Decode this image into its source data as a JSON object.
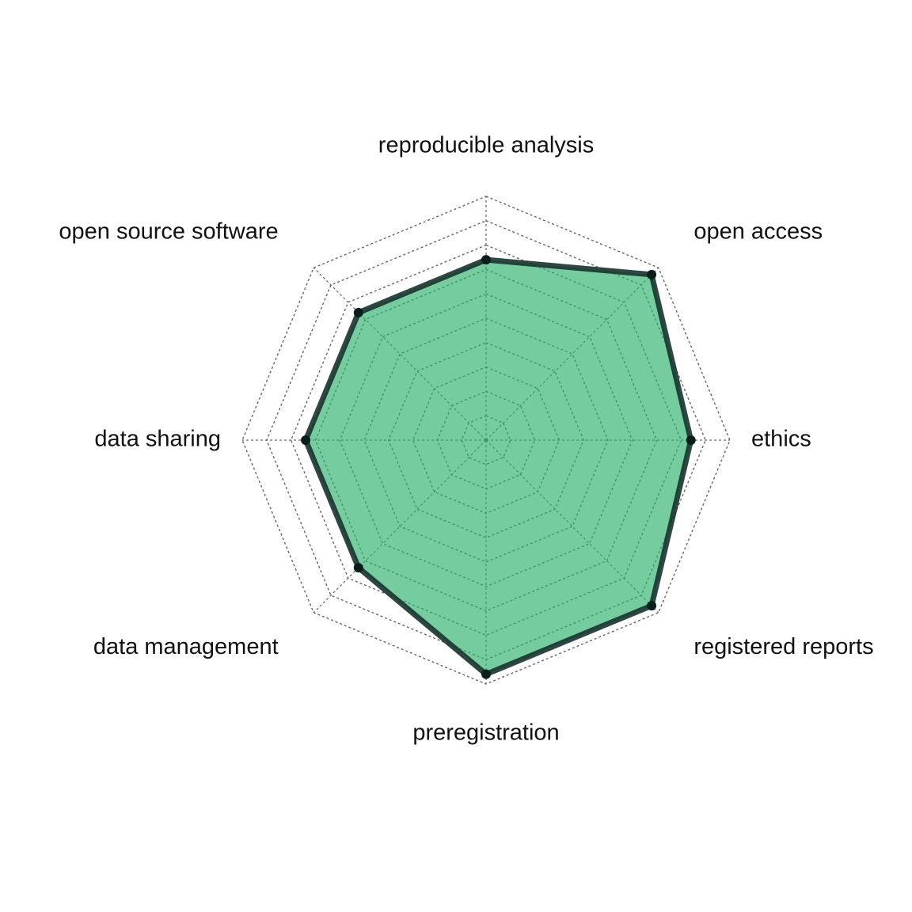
{
  "colors": {
    "fill": "#2ab06b",
    "fill_opacity": 0.65,
    "stroke": "#17332e",
    "point": "#0a1f1c",
    "grid": "#666666"
  },
  "chart_data": {
    "type": "radar",
    "title": "",
    "axes": [
      "reproducible analysis",
      "open access",
      "ethics",
      "registered reports",
      "preregistration",
      "data management",
      "data sharing",
      "open source software"
    ],
    "values": [
      7.4,
      9.6,
      8.4,
      9.6,
      9.6,
      7.4,
      7.4,
      7.4
    ],
    "range": [
      0,
      10
    ],
    "rings": 10,
    "grid": true,
    "legend": "none"
  }
}
